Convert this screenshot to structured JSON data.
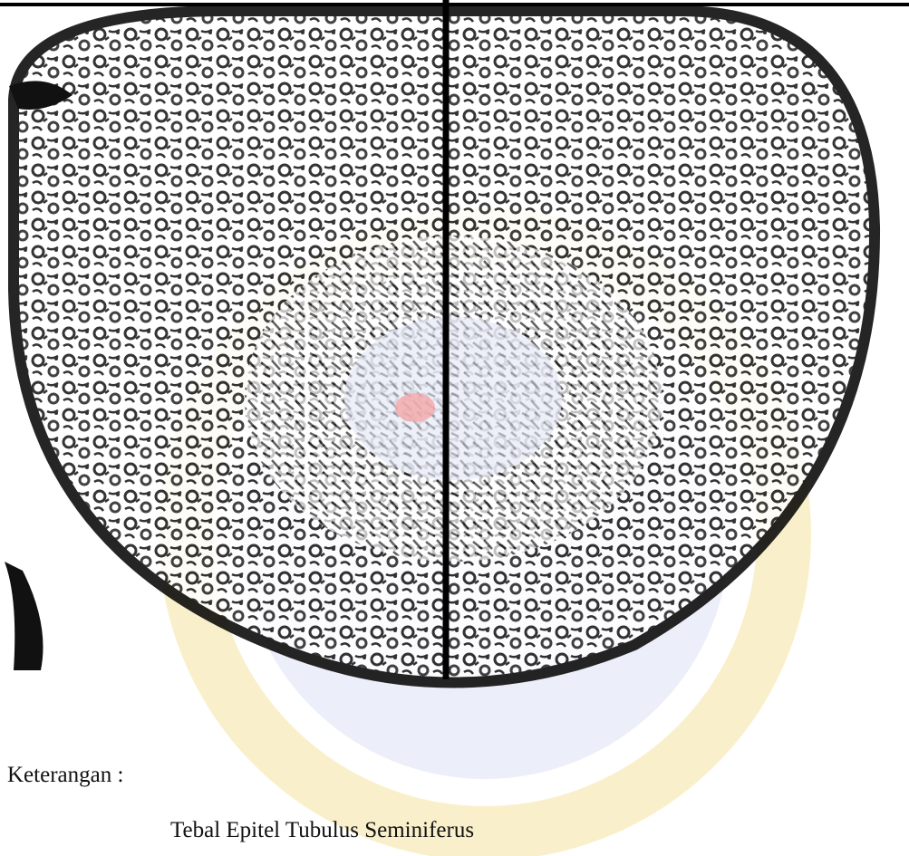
{
  "caption": {
    "label": "Keterangan :",
    "text": "Tebal Epitel Tubulus Seminiferus"
  }
}
